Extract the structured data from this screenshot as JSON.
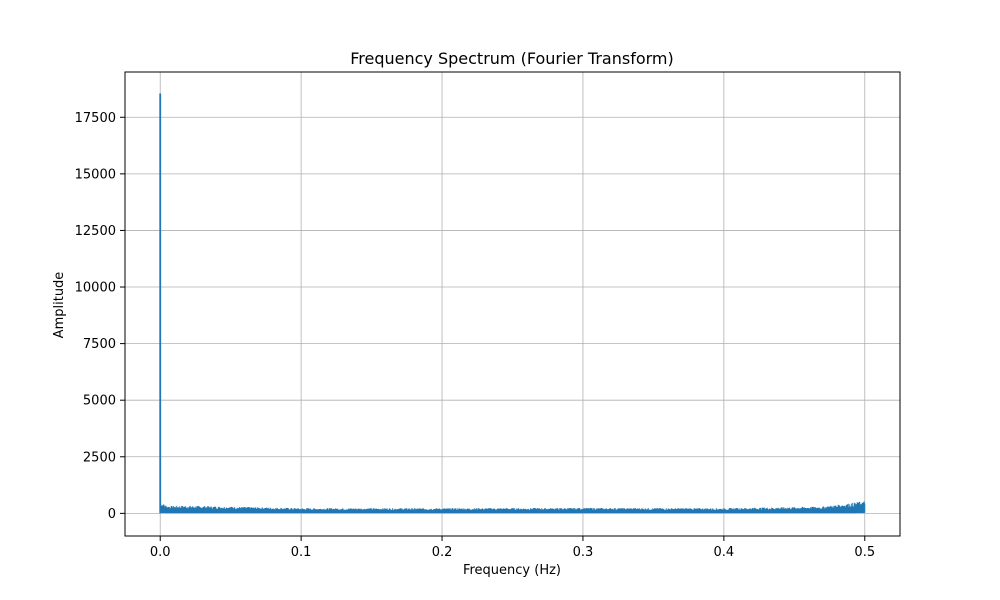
{
  "chart_data": {
    "type": "line",
    "title": "Frequency Spectrum (Fourier Transform)",
    "xlabel": "Frequency (Hz)",
    "ylabel": "Amplitude",
    "xlim": [
      -0.025,
      0.525
    ],
    "ylim": [
      -1000,
      19500
    ],
    "x_ticks": [
      0.0,
      0.1,
      0.2,
      0.3,
      0.4,
      0.5
    ],
    "x_tick_labels": [
      "0.0",
      "0.1",
      "0.2",
      "0.3",
      "0.4",
      "0.5"
    ],
    "y_ticks": [
      0,
      2500,
      5000,
      7500,
      10000,
      12500,
      15000,
      17500
    ],
    "y_tick_labels": [
      "0",
      "2500",
      "5000",
      "7500",
      "10000",
      "12500",
      "15000",
      "17500"
    ],
    "grid": true,
    "series": [
      {
        "color": "#1f77b4",
        "peak": {
          "x": 0.0,
          "y": 18550
        },
        "noise_band": {
          "x": [
            0.0,
            0.005,
            0.02,
            0.05,
            0.1,
            0.2,
            0.3,
            0.4,
            0.47,
            0.49,
            0.5
          ],
          "upper": [
            500,
            330,
            340,
            300,
            230,
            230,
            240,
            230,
            300,
            450,
            550
          ],
          "lower": [
            20,
            10,
            10,
            10,
            10,
            10,
            10,
            10,
            10,
            10,
            20
          ]
        }
      }
    ]
  }
}
